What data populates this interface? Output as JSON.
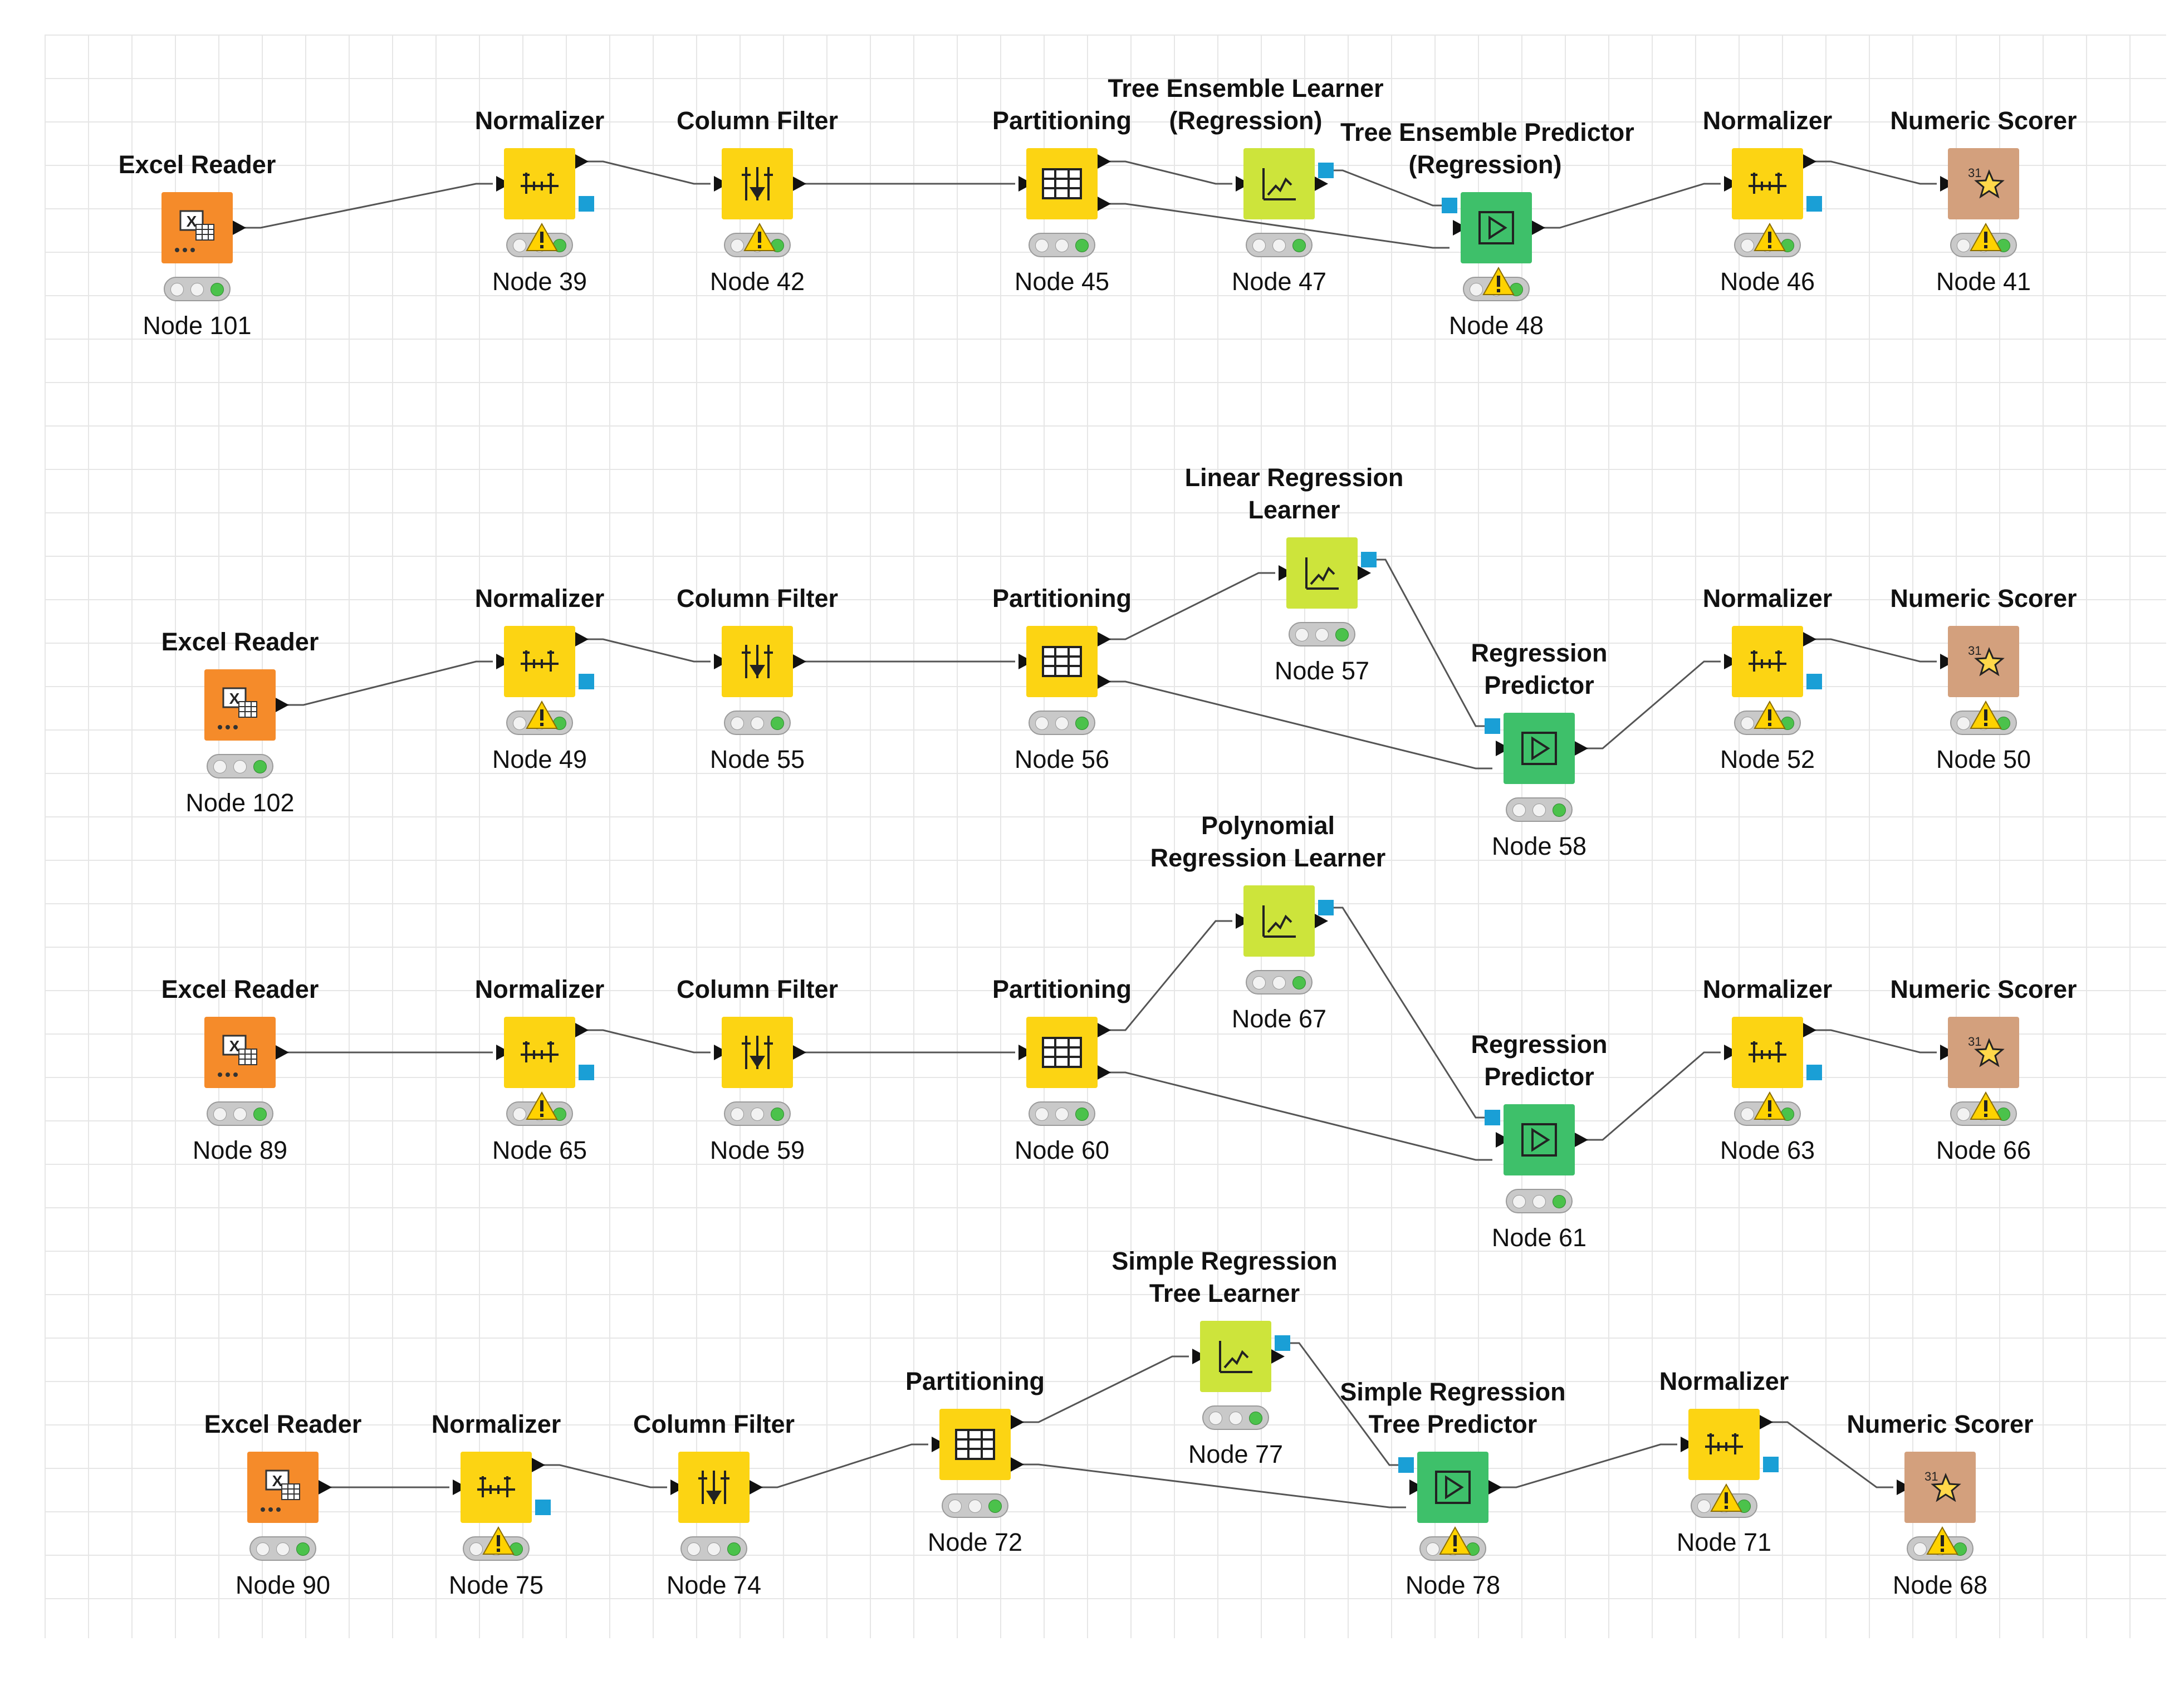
{
  "workflow": {
    "rows": [
      {
        "name": "tree-ensemble-row",
        "nodes": [
          {
            "type": "Excel Reader",
            "label": "Node 101",
            "warning": false
          },
          {
            "type": "Normalizer",
            "label": "Node 39",
            "warning": true
          },
          {
            "type": "Column Filter",
            "label": "Node 42",
            "warning": true
          },
          {
            "type": "Partitioning",
            "label": "Node 45",
            "warning": false
          },
          {
            "type": "Tree Ensemble Learner\n(Regression)",
            "label": "Node 47",
            "warning": false
          },
          {
            "type": "Tree Ensemble Predictor\n(Regression)",
            "label": "Node 48",
            "warning": true
          },
          {
            "type": "Normalizer",
            "label": "Node 46",
            "warning": true
          },
          {
            "type": "Numeric Scorer",
            "label": "Node 41",
            "warning": true
          }
        ]
      },
      {
        "name": "linear-regression-row",
        "nodes": [
          {
            "type": "Excel Reader",
            "label": "Node 102",
            "warning": false
          },
          {
            "type": "Normalizer",
            "label": "Node 49",
            "warning": true
          },
          {
            "type": "Column Filter",
            "label": "Node 55",
            "warning": false
          },
          {
            "type": "Partitioning",
            "label": "Node 56",
            "warning": false
          },
          {
            "type": "Linear Regression\nLearner",
            "label": "Node 57",
            "warning": false
          },
          {
            "type": "Regression\nPredictor",
            "label": "Node 58",
            "warning": false
          },
          {
            "type": "Normalizer",
            "label": "Node 52",
            "warning": true
          },
          {
            "type": "Numeric Scorer",
            "label": "Node 50",
            "warning": true
          }
        ]
      },
      {
        "name": "polynomial-regression-row",
        "nodes": [
          {
            "type": "Excel Reader",
            "label": "Node 89",
            "warning": false
          },
          {
            "type": "Normalizer",
            "label": "Node 65",
            "warning": true
          },
          {
            "type": "Column Filter",
            "label": "Node 59",
            "warning": false
          },
          {
            "type": "Partitioning",
            "label": "Node 60",
            "warning": false
          },
          {
            "type": "Polynomial\nRegression Learner",
            "label": "Node 67",
            "warning": false
          },
          {
            "type": "Regression\nPredictor",
            "label": "Node 61",
            "warning": false
          },
          {
            "type": "Normalizer",
            "label": "Node 63",
            "warning": true
          },
          {
            "type": "Numeric Scorer",
            "label": "Node 66",
            "warning": true
          }
        ]
      },
      {
        "name": "regression-tree-row",
        "nodes": [
          {
            "type": "Excel Reader",
            "label": "Node 90",
            "warning": false
          },
          {
            "type": "Normalizer",
            "label": "Node 75",
            "warning": true
          },
          {
            "type": "Column Filter",
            "label": "Node 74",
            "warning": false
          },
          {
            "type": "Partitioning",
            "label": "Node 72",
            "warning": false
          },
          {
            "type": "Simple Regression\nTree Learner",
            "label": "Node 77",
            "warning": false
          },
          {
            "type": "Simple Regression\nTree Predictor",
            "label": "Node 78",
            "warning": true
          },
          {
            "type": "Normalizer",
            "label": "Node 71",
            "warning": true
          },
          {
            "type": "Numeric Scorer",
            "label": "Node 68",
            "warning": true
          }
        ]
      }
    ]
  },
  "colors": {
    "reader": "#f58b2a",
    "manipulator": "#fcd413",
    "learner": "#cde43b",
    "predictor": "#3ec06a",
    "scorer": "#d3a07d"
  }
}
